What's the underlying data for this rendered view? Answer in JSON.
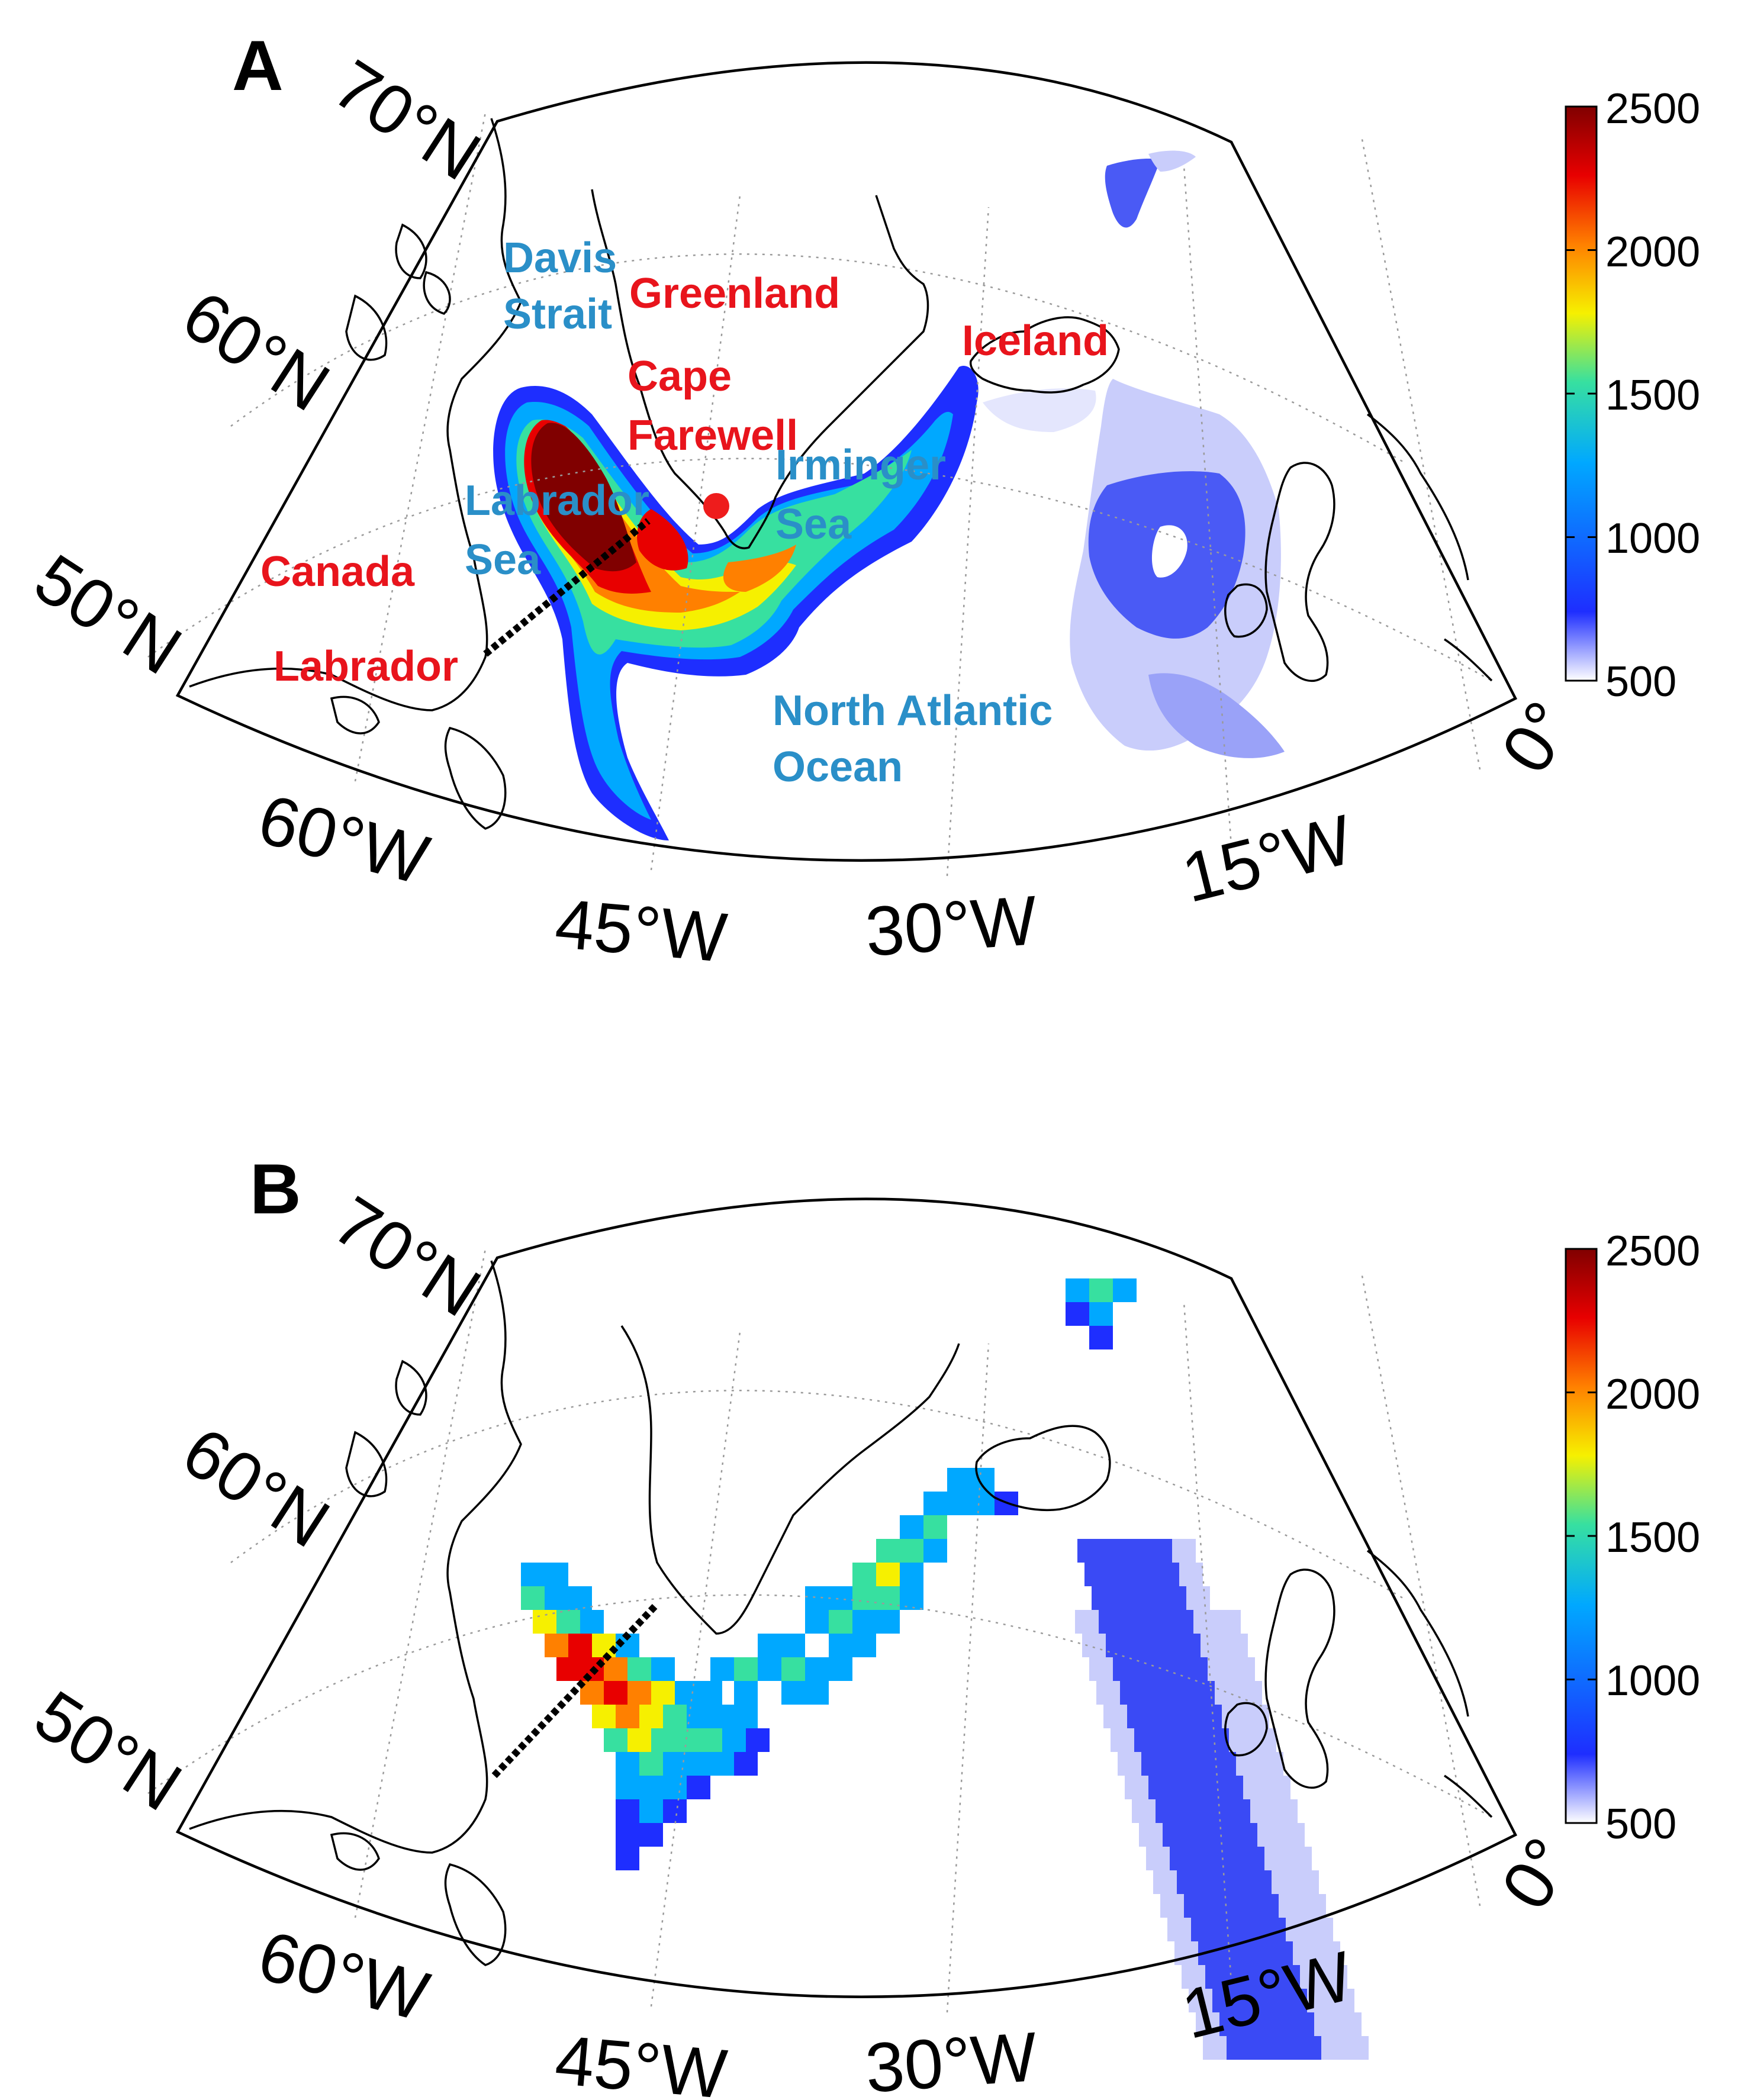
{
  "panels": [
    {
      "letter": "A",
      "lat_labels": [
        "70°N",
        "60°N",
        "50°N"
      ],
      "lon_labels": [
        "60°W",
        "45°W",
        "30°W",
        "15°W",
        "0°"
      ],
      "colorbar_ticks": [
        "2500",
        "2000",
        "1500",
        "1000",
        "500"
      ],
      "places": {
        "davis_strait": [
          "Davis",
          "Strait"
        ],
        "greenland": "Greenland",
        "cape_farewell": [
          "Cape",
          "Farewell"
        ],
        "iceland": "Iceland",
        "irminger_sea": [
          "Irminger",
          "Sea"
        ],
        "labrador_sea": [
          "Labrador",
          "Sea"
        ],
        "canada": "Canada",
        "labrador": "Labrador",
        "north_atlantic": [
          "North Atlantic",
          "Ocean"
        ]
      }
    },
    {
      "letter": "B",
      "lat_labels": [
        "70°N",
        "60°N",
        "50°N"
      ],
      "lon_labels": [
        "60°W",
        "45°W",
        "30°W",
        "15°W",
        "0°"
      ],
      "colorbar_ticks": [
        "2500",
        "2000",
        "1500",
        "1000",
        "500"
      ]
    }
  ],
  "colorbar": {
    "min": 500,
    "max": 2500,
    "colors": [
      "#ffffff",
      "#1e2eff",
      "#00a8ff",
      "#37e0a0",
      "#f6f000",
      "#ff8000",
      "#e80000",
      "#800000"
    ]
  }
}
